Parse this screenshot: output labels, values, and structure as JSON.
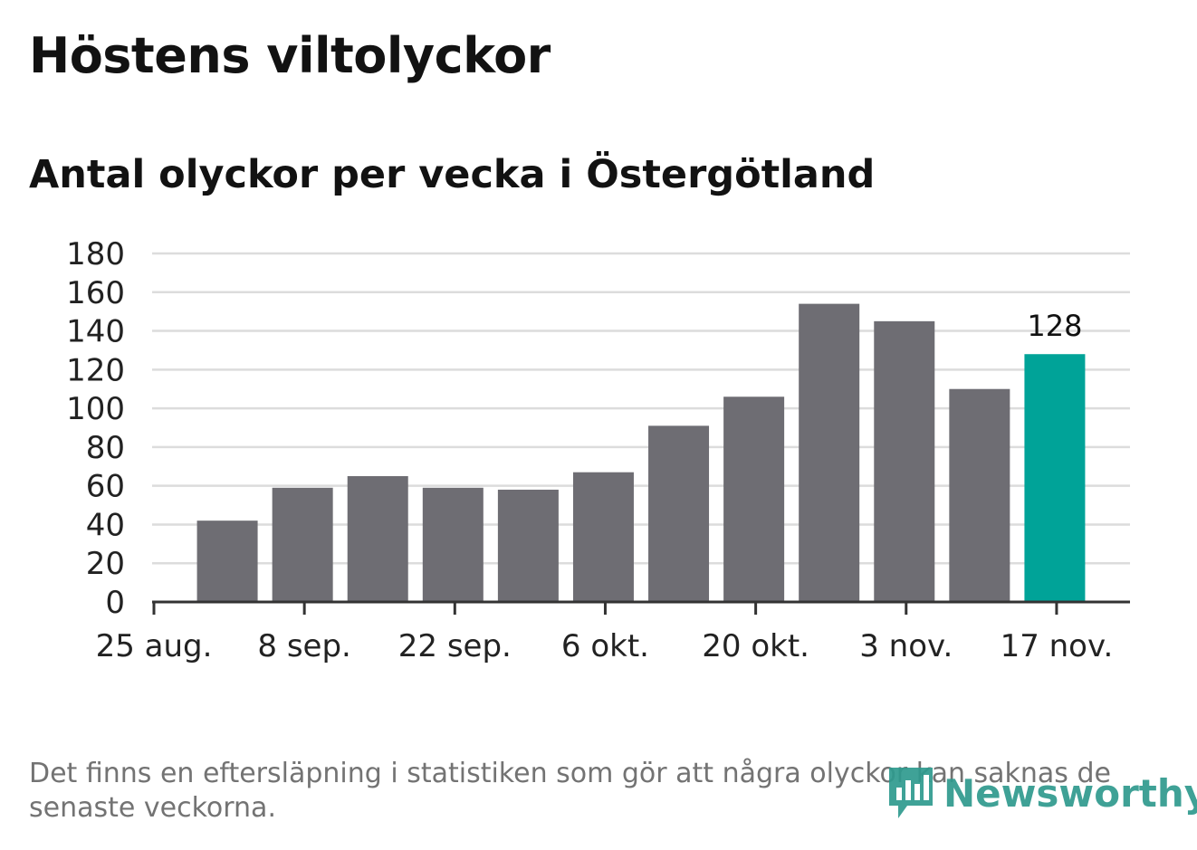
{
  "header": {
    "title": "Höstens viltolyckor",
    "subtitle": "Antal olyckor per vecka i Östergötland"
  },
  "footer": {
    "note": "Det finns en eftersläpning i statistiken som gör att några olyckor kan saknas de senaste veckorna.",
    "brand": "Newsworthy",
    "logo_icon": "bar-chart-bubble-icon"
  },
  "colors": {
    "bar": "#6e6d73",
    "highlight": "#00a398",
    "grid": "#dcdcdc",
    "axis": "#333333",
    "text": "#222222",
    "brand": "#2f9a8e"
  },
  "chart_data": {
    "type": "bar",
    "title": "Höstens viltolyckor",
    "subtitle": "Antal olyckor per vecka i Östergötland",
    "x_tick_labels": [
      "25 aug.",
      "8 sep.",
      "22 sep.",
      "6 okt.",
      "20 okt.",
      "3 nov.",
      "17 nov."
    ],
    "series": [
      {
        "values": [
          42,
          59,
          65,
          59,
          58,
          67,
          91,
          106,
          154,
          145,
          110,
          128
        ]
      }
    ],
    "highlight_index": 11,
    "data_labels": [
      {
        "index": 11,
        "text": "128"
      }
    ],
    "ylim": [
      0,
      180
    ],
    "yticks": [
      0,
      20,
      40,
      60,
      80,
      100,
      120,
      140,
      160,
      180
    ],
    "grid": true,
    "legend": "none"
  }
}
